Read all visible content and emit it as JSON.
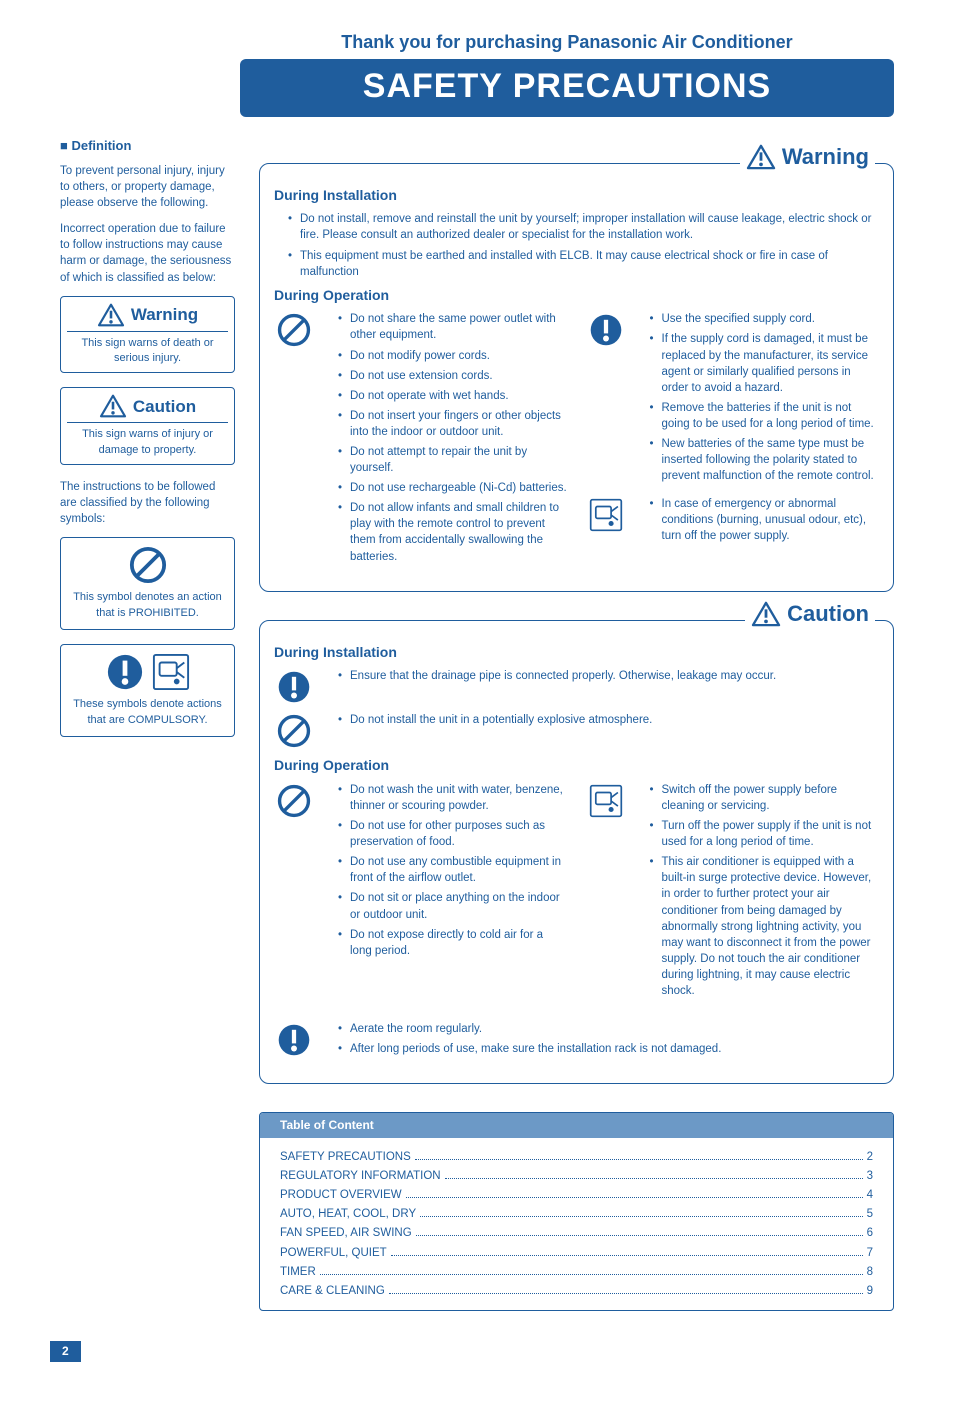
{
  "colors": {
    "primary": "#1f5d9d",
    "tocHeader": "#6c99c6",
    "white": "#ffffff"
  },
  "header": {
    "thanks": "Thank you for purchasing Panasonic Air Conditioner",
    "title": "SAFETY PRECAUTIONS"
  },
  "sidebar": {
    "defHead": "Definition",
    "p1": "To prevent personal injury, injury to others, or property damage, please observe the following.",
    "p2": "Incorrect operation due to failure to follow instructions may cause harm or damage, the seriousness of which is classified as below:",
    "warnBox": {
      "label": "Warning",
      "desc": "This sign warns of death or serious injury."
    },
    "cautionBox": {
      "label": "Caution",
      "desc": "This sign warns of injury or damage to property."
    },
    "symIntro": "The instructions to be followed are classified by the following symbols:",
    "prohibited": "This symbol denotes an action that is PROHIBITED.",
    "compulsory": "These symbols denote actions that are COMPULSORY."
  },
  "warning": {
    "label": "Warning",
    "install": {
      "head": "During Installation",
      "items": [
        "Do not install, remove and reinstall the unit by yourself; improper installation will cause leakage, electric shock or fire. Please consult an authorized dealer or specialist for the installation work.",
        "This equipment must be earthed and installed with ELCB. It may cause electrical shock or fire in case of malfunction"
      ]
    },
    "operation": {
      "head": "During Operation",
      "leftItems": [
        "Do not share the same power outlet with other equipment.",
        "Do not modify power cords.",
        "Do not use extension cords.",
        "Do not operate with wet hands.",
        "Do not insert your fingers or other objects into the indoor or outdoor unit.",
        "Do not attempt to repair the unit by yourself.",
        "Do not use rechargeable (Ni-Cd) batteries.",
        "Do not allow infants and small children to play with the remote control to prevent them from accidentally swallowing the batteries."
      ],
      "rightTop": [
        "Use the specified supply cord.",
        "If the supply cord is damaged, it must be replaced by the manufacturer, its service agent or similarly qualified persons in order to avoid a hazard.",
        "Remove the batteries if the unit is not going to be used for a long period of time.",
        "New batteries of the same type must be inserted following the polarity stated to prevent malfunction of the remote control."
      ],
      "rightBottom": [
        "In case of emergency or abnormal conditions (burning, unusual odour, etc), turn off the power supply."
      ]
    }
  },
  "caution": {
    "label": "Caution",
    "install": {
      "head": "During Installation",
      "comp": "Ensure that the drainage pipe is connected properly. Otherwise, leakage may occur.",
      "proh": "Do not install the unit in a potentially explosive atmosphere."
    },
    "operation": {
      "head": "During Operation",
      "leftItems": [
        "Do not wash the unit with water, benzene, thinner or scouring powder.",
        "Do not use for other purposes such as preservation of food.",
        "Do not use any combustible equipment in front of the airflow outlet.",
        "Do not sit or place anything on the indoor or outdoor unit.",
        "Do not expose directly to cold air for a long period."
      ],
      "rightItems": [
        "Switch off the power supply before cleaning or servicing.",
        "Turn off the power supply if the unit is not used for a long period of time.",
        "This air conditioner is equipped with a built-in surge protective device. However, in order to further protect your air conditioner from being damaged by abnormally strong lightning activity, you may want to disconnect it from the power supply. Do not touch the air conditioner during lightning, it may cause electric shock."
      ],
      "bottom": [
        "Aerate the room regularly.",
        "After long periods of use, make sure the installation rack is not damaged."
      ]
    }
  },
  "toc": {
    "head": "Table of Content",
    "rows": [
      {
        "t": "SAFETY PRECAUTIONS",
        "p": "2"
      },
      {
        "t": "REGULATORY INFORMATION",
        "p": "3"
      },
      {
        "t": "PRODUCT OVERVIEW",
        "p": "4"
      },
      {
        "t": "AUTO, HEAT, COOL, DRY",
        "p": "5"
      },
      {
        "t": "FAN SPEED, AIR SWING",
        "p": "6"
      },
      {
        "t": "POWERFUL, QUIET",
        "p": "7"
      },
      {
        "t": "TIMER",
        "p": "8"
      },
      {
        "t": "CARE & CLEANING",
        "p": "9"
      }
    ]
  },
  "pageNumber": "2"
}
